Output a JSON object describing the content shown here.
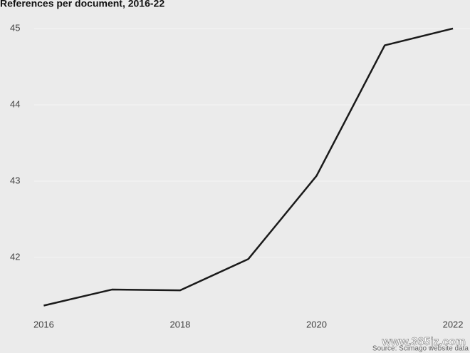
{
  "chart_data": {
    "type": "line",
    "title": "References per document, 2016-22",
    "x": [
      2016,
      2017,
      2018,
      2019,
      2020,
      2021,
      2022
    ],
    "values": [
      41.37,
      41.58,
      41.57,
      41.98,
      43.07,
      44.78,
      45.0
    ],
    "color": "#1a1a1a",
    "xlim": [
      2015.86,
      2022.25
    ],
    "xticks": [
      2016,
      2018,
      2020,
      2022
    ],
    "ylim": [
      41.3,
      45.1
    ],
    "yticks": [
      42,
      43,
      44,
      45
    ],
    "grid": true,
    "source": "Source: Scimago website data",
    "watermark": "www.365jz.com"
  }
}
